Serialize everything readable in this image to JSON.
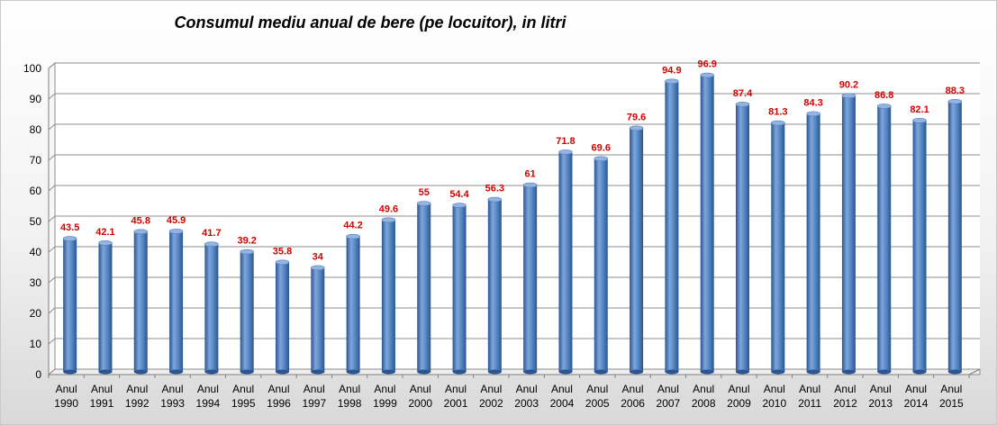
{
  "chart_data": {
    "type": "bar",
    "title": "Consumul mediu anual de bere (pe locuitor), in litri",
    "categories": [
      [
        "Anul",
        "1990"
      ],
      [
        "Anul",
        "1991"
      ],
      [
        "Anul",
        "1992"
      ],
      [
        "Anul",
        "1993"
      ],
      [
        "Anul",
        "1994"
      ],
      [
        "Anul",
        "1995"
      ],
      [
        "Anul",
        "1996"
      ],
      [
        "Anul",
        "1997"
      ],
      [
        "Anul",
        "1998"
      ],
      [
        "Anul",
        "1999"
      ],
      [
        "Anul",
        "2000"
      ],
      [
        "Anul",
        "2001"
      ],
      [
        "Anul",
        "2002"
      ],
      [
        "Anul",
        "2003"
      ],
      [
        "Anul",
        "2004"
      ],
      [
        "Anul",
        "2005"
      ],
      [
        "Anul",
        "2006"
      ],
      [
        "Anul",
        "2007"
      ],
      [
        "Anul",
        "2008"
      ],
      [
        "Anul",
        "2009"
      ],
      [
        "Anul",
        "2010"
      ],
      [
        "Anul",
        "2011"
      ],
      [
        "Anul",
        "2012"
      ],
      [
        "Anul",
        "2013"
      ],
      [
        "Anul",
        "2014"
      ],
      [
        "Anul",
        "2015"
      ]
    ],
    "values": [
      43.5,
      42.1,
      45.8,
      45.9,
      41.7,
      39.2,
      35.8,
      34,
      44.2,
      49.6,
      55,
      54.4,
      56.3,
      61,
      71.8,
      69.6,
      79.6,
      94.9,
      96.9,
      87.4,
      81.3,
      84.3,
      90.2,
      86.8,
      82.1,
      88.3
    ],
    "data_labels": [
      "43.5",
      "42.1",
      "45.8",
      "45.9",
      "41.7",
      "39.2",
      "35.8",
      "34",
      "44.2",
      "49.6",
      "55",
      "54.4",
      "56.3",
      "61",
      "71.8",
      "69.6",
      "79.6",
      "94.9",
      "96.9",
      "87.4",
      "81.3",
      "84.3",
      "90.2",
      "86.8",
      "82.1",
      "88.3"
    ],
    "ylim": [
      0,
      100
    ],
    "yticks": [
      "0",
      "10",
      "20",
      "30",
      "40",
      "50",
      "60",
      "70",
      "80",
      "90",
      "100"
    ],
    "grid": true,
    "style": "3d-cylinder",
    "colors": {
      "bar_light": "#7fa6dc",
      "bar_mid": "#4f81bd",
      "bar_dark": "#2a5592",
      "bar_top": "#95b3e0",
      "data_label": "#d40000",
      "gridline": "#8c8c8c",
      "wall": "#ffffff"
    }
  }
}
